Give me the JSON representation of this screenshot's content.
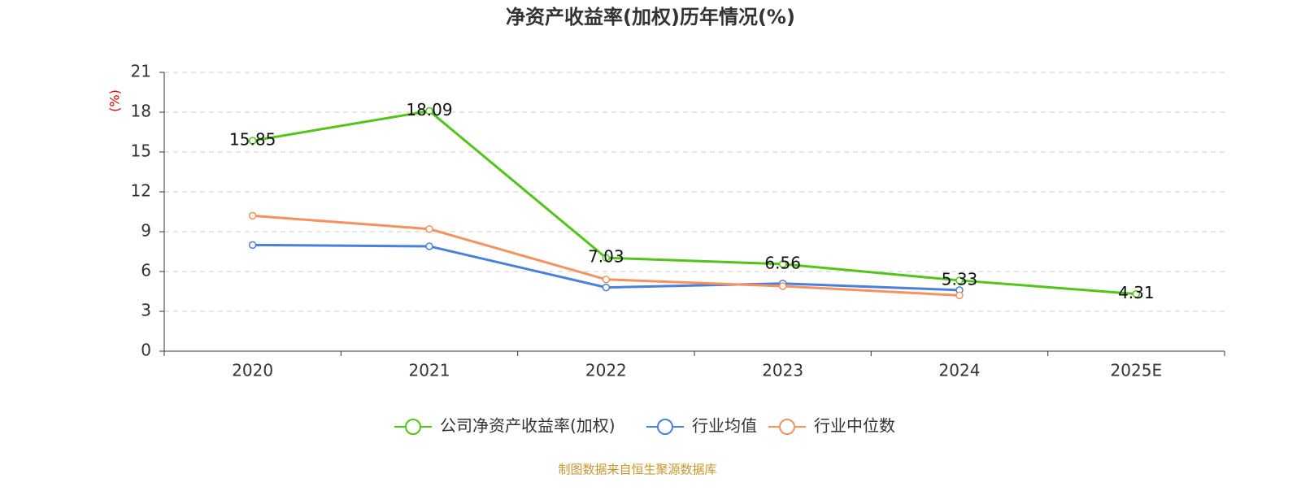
{
  "chart_data": {
    "type": "line",
    "title": "净资产收益率(加权)历年情况(%)",
    "y_label": "(%)",
    "source": "制图数据来自恒生聚源数据库",
    "categories": [
      "2020",
      "2021",
      "2022",
      "2023",
      "2024",
      "2025E"
    ],
    "series": [
      {
        "name": "公司净资产收益率(加权)",
        "color": "#52c41a",
        "values": [
          15.85,
          18.09,
          7.03,
          6.56,
          5.33,
          4.31
        ],
        "labels": true
      },
      {
        "name": "行业均值",
        "color": "#4a80dc",
        "values": [
          8.0,
          7.9,
          4.8,
          5.1,
          4.6,
          null
        ]
      },
      {
        "name": "行业中位数",
        "color": "#f7915f",
        "values": [
          10.2,
          9.2,
          5.4,
          4.9,
          4.2,
          null
        ]
      }
    ],
    "ylim": [
      0,
      21
    ],
    "yticks": [
      0,
      3,
      6,
      9,
      12,
      15,
      18,
      21
    ],
    "grid": true,
    "legend": "bottom"
  }
}
